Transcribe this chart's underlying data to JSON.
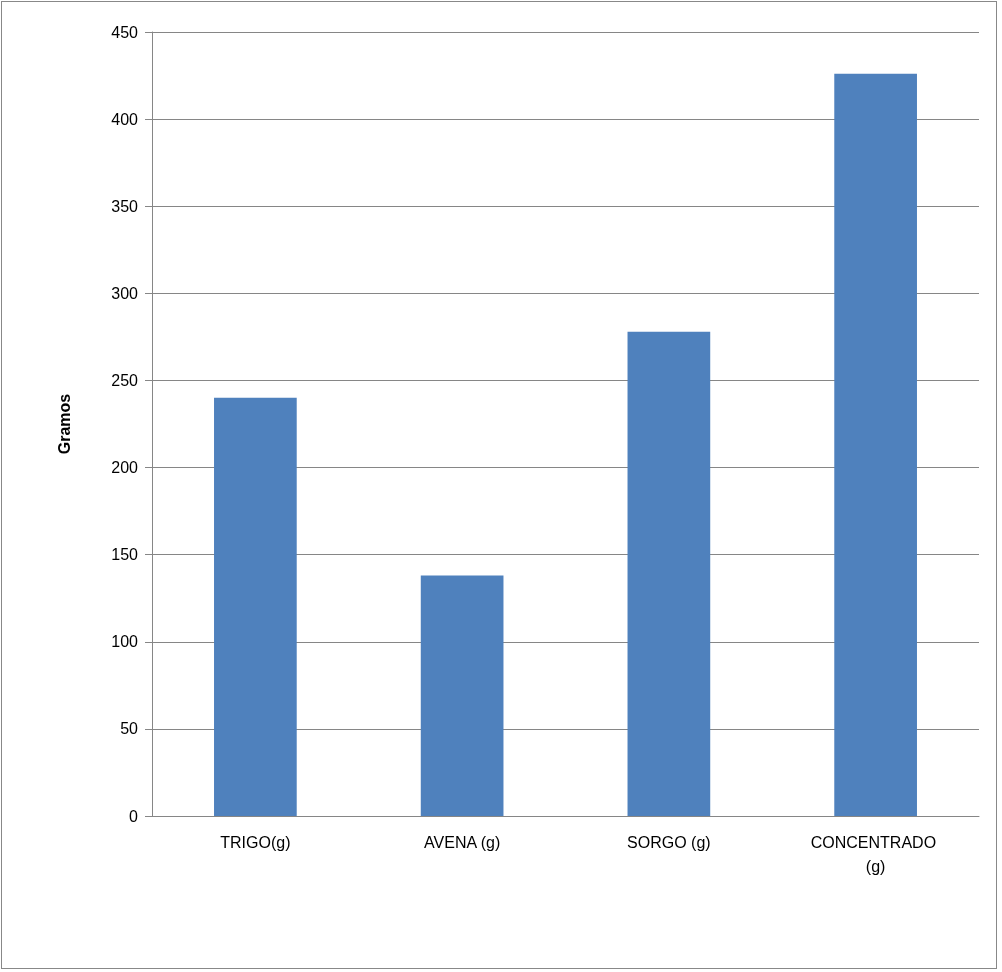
{
  "chart_data": {
    "type": "bar",
    "ylabel": "Gramos",
    "categories": [
      "TRIGO(g)",
      "AVENA (g)",
      "SORGO (g)",
      "CONCENTRADO (g)"
    ],
    "values": [
      240,
      138,
      278,
      426
    ],
    "color": "#4f81bd",
    "ylim": [
      0,
      450
    ],
    "yticks": [
      0,
      50,
      100,
      150,
      200,
      250,
      300,
      350,
      400,
      450
    ],
    "grid": "y"
  }
}
